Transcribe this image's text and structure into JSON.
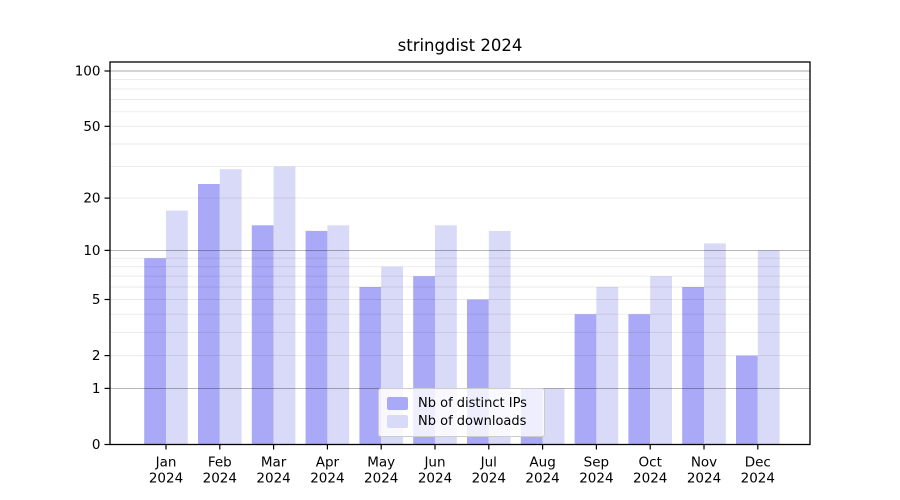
{
  "title": "stringdist 2024",
  "legend": {
    "items": [
      {
        "label": "Nb of distinct IPs",
        "color": "#a9a9f8"
      },
      {
        "label": "Nb of downloads",
        "color": "#d9d9f8"
      }
    ]
  },
  "chart_data": {
    "type": "bar",
    "title": "stringdist 2024",
    "categories": [
      "Jan",
      "Feb",
      "Mar",
      "Apr",
      "May",
      "Jun",
      "Jul",
      "Aug",
      "Sep",
      "Oct",
      "Nov",
      "Dec"
    ],
    "year_labels": [
      "2024",
      "2024",
      "2024",
      "2024",
      "2024",
      "2024",
      "2024",
      "2024",
      "2024",
      "2024",
      "2024",
      "2024"
    ],
    "series": [
      {
        "name": "Nb of distinct IPs",
        "color": "#a9a9f8",
        "values": [
          9,
          24,
          14,
          13,
          6,
          7,
          5,
          1,
          4,
          4,
          6,
          2
        ]
      },
      {
        "name": "Nb of downloads",
        "color": "#d9d9f8",
        "values": [
          17,
          29,
          30,
          14,
          8,
          14,
          13,
          1,
          6,
          7,
          11,
          10
        ]
      }
    ],
    "xlabel": "",
    "ylabel": "",
    "yscale": "log1p",
    "ylim": [
      0,
      112
    ],
    "ytick_labels": [
      "0",
      "1",
      "2",
      "5",
      "10",
      "20",
      "50",
      "100"
    ],
    "ytick_values": [
      0,
      1,
      2,
      5,
      10,
      20,
      50,
      100
    ],
    "major_gridlines": [
      1,
      10,
      100
    ],
    "minor_gridlines": [
      2,
      3,
      4,
      5,
      6,
      7,
      8,
      9,
      20,
      30,
      40,
      50,
      60,
      70,
      80,
      90
    ],
    "grid": true,
    "legend_position": "lower center"
  }
}
